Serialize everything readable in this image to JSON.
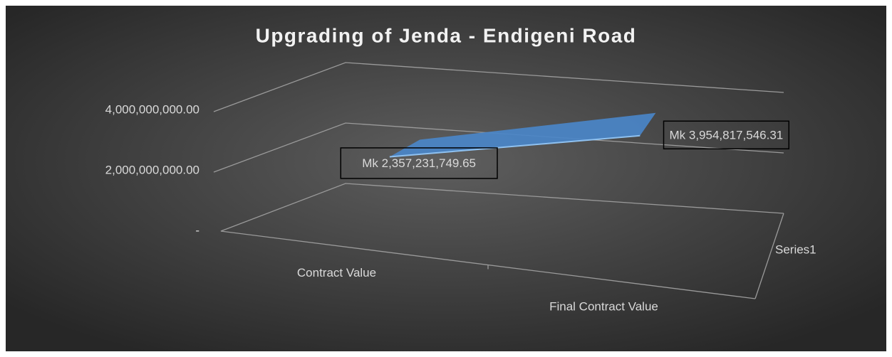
{
  "chart_data": {
    "type": "line3d",
    "title": "Upgrading of Jenda - Endigeni Road",
    "categories": [
      "Contract Value",
      "Final Contract Value"
    ],
    "series": [
      {
        "name": "Series1",
        "color": "#4a86c8",
        "values": [
          2357231749.65,
          3954817546.31
        ],
        "value_labels": [
          "Mk 2,357,231,749.65",
          "Mk 3,954,817,546.31"
        ]
      }
    ],
    "ylim": [
      0,
      4000000000
    ],
    "yticks": [
      {
        "value": 0,
        "label": "-"
      },
      {
        "value": 2000000000,
        "label": "2,000,000,000.00"
      },
      {
        "value": 4000000000,
        "label": "4,000,000,000.00"
      }
    ],
    "grid": true
  }
}
